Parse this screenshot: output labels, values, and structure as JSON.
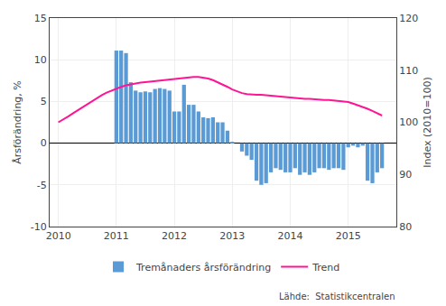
{
  "chart_data": {
    "type": "bar",
    "x": [
      2010.0,
      2010.083,
      2010.167,
      2010.25,
      2010.333,
      2010.417,
      2010.5,
      2010.583,
      2010.667,
      2010.75,
      2010.833,
      2010.917,
      2011.0,
      2011.083,
      2011.167,
      2011.25,
      2011.333,
      2011.417,
      2011.5,
      2011.583,
      2011.667,
      2011.75,
      2011.833,
      2011.917,
      2012.0,
      2012.083,
      2012.167,
      2012.25,
      2012.333,
      2012.417,
      2012.5,
      2012.583,
      2012.667,
      2012.75,
      2012.833,
      2012.917,
      2013.0,
      2013.083,
      2013.167,
      2013.25,
      2013.333,
      2013.417,
      2013.5,
      2013.583,
      2013.667,
      2013.75,
      2013.833,
      2013.917,
      2014.0,
      2014.083,
      2014.167,
      2014.25,
      2014.333,
      2014.417,
      2014.5,
      2014.583,
      2014.667,
      2014.75,
      2014.833,
      2014.917,
      2015.0,
      2015.083,
      2015.167,
      2015.25,
      2015.333,
      2015.417,
      2015.5,
      2015.583
    ],
    "series": [
      {
        "name": "Tremånaders årsförändring",
        "type": "bar",
        "color": "#5B9BD5",
        "values": [
          0.0,
          0.0,
          0.0,
          0.0,
          0.0,
          0.0,
          0.0,
          0.0,
          0.0,
          0.0,
          0.0,
          0.0,
          11.1,
          11.1,
          10.8,
          7.3,
          6.3,
          6.1,
          6.2,
          6.1,
          6.5,
          6.6,
          6.5,
          6.3,
          3.8,
          3.8,
          7.0,
          4.6,
          4.6,
          3.8,
          3.1,
          3.0,
          3.1,
          2.5,
          2.5,
          1.5,
          0.1,
          0.0,
          -1.0,
          -1.5,
          -2.0,
          -4.5,
          -5.0,
          -4.8,
          -3.5,
          -3.0,
          -3.2,
          -3.5,
          -3.5,
          -3.0,
          -3.8,
          -3.5,
          -3.8,
          -3.5,
          -3.0,
          -3.0,
          -3.2,
          -3.0,
          -3.0,
          -3.2,
          -0.5,
          -0.3,
          -0.5,
          -0.3,
          -4.5,
          -4.8,
          -3.5,
          -3.0
        ]
      },
      {
        "name": "Trend",
        "type": "line",
        "color": "#FF1493",
        "axis": "y2",
        "values": [
          100.0,
          100.5,
          101.1,
          101.7,
          102.3,
          102.9,
          103.5,
          104.1,
          104.7,
          105.2,
          105.7,
          106.1,
          106.5,
          106.8,
          107.1,
          107.3,
          107.5,
          107.6,
          107.7,
          107.8,
          107.9,
          108.0,
          108.1,
          108.2,
          108.3,
          108.5,
          108.6,
          108.7,
          108.7,
          108.7,
          108.6,
          108.4,
          108.1,
          107.7,
          107.3,
          106.8,
          106.3,
          105.9,
          105.6,
          105.4,
          105.3,
          105.3,
          105.3,
          105.2,
          105.2,
          105.1,
          105.0,
          104.9,
          104.8,
          104.7,
          104.6,
          104.5,
          104.5,
          104.4,
          104.4,
          104.3,
          104.3,
          104.2,
          104.2,
          104.1,
          103.9,
          103.6,
          103.3,
          103.0,
          102.6,
          102.2,
          101.8,
          101.3
        ]
      }
    ],
    "ylabel": "Årsförändring, %",
    "y2label": "Index (2010=100)",
    "xlim": [
      2009.85,
      2015.83
    ],
    "xticks": [
      2010,
      2011,
      2012,
      2013,
      2014,
      2015
    ],
    "ylim": [
      -10,
      15
    ],
    "yticks": [
      -10,
      -5,
      0,
      5,
      10,
      15
    ],
    "y2lim": [
      80,
      120
    ],
    "y2ticks": [
      80,
      90,
      100,
      110,
      120
    ],
    "grid": true,
    "legend": "bottom",
    "annotations": [
      "Lähde:  Statistikcentralen"
    ]
  }
}
